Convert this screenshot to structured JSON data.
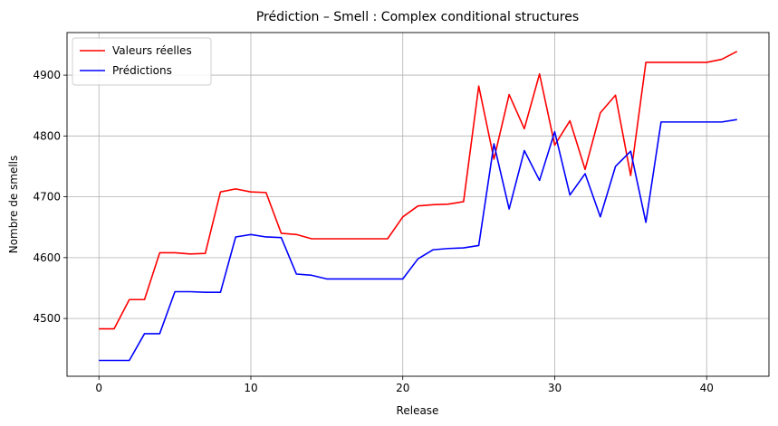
{
  "chart_data": {
    "type": "line",
    "title": "Prédiction – Smell : Complex conditional structures",
    "xlabel": "Release",
    "ylabel": "Nombre de smells",
    "xlim": [
      -2.1,
      44.1
    ],
    "ylim": [
      4405,
      4970
    ],
    "xticks": [
      0,
      10,
      20,
      30,
      40
    ],
    "yticks": [
      4500,
      4600,
      4700,
      4800,
      4900
    ],
    "grid": true,
    "legend_position": "top-left",
    "x": [
      0,
      1,
      2,
      3,
      4,
      5,
      6,
      7,
      8,
      9,
      10,
      11,
      12,
      13,
      14,
      15,
      16,
      17,
      18,
      19,
      20,
      21,
      22,
      23,
      24,
      25,
      26,
      27,
      28,
      29,
      30,
      31,
      32,
      33,
      34,
      35,
      36,
      37,
      38,
      39,
      40,
      41,
      42
    ],
    "series": [
      {
        "name": "Valeurs réelles",
        "color": "#ff0000",
        "values": [
          4483,
          4483,
          4531,
          4531,
          4608,
          4608,
          4606,
          4607,
          4708,
          4713,
          4708,
          4707,
          4640,
          4638,
          4631,
          4631,
          4631,
          4631,
          4631,
          4631,
          4667,
          4685,
          4687,
          4688,
          4692,
          4882,
          4762,
          4868,
          4812,
          4902,
          4785,
          4825,
          4745,
          4838,
          4867,
          4735,
          4921,
          4921,
          4921,
          4921,
          4921,
          4926,
          4939
        ]
      },
      {
        "name": "Prédictions",
        "color": "#0000ff",
        "values": [
          4431,
          4431,
          4431,
          4475,
          4475,
          4544,
          4544,
          4543,
          4543,
          4634,
          4638,
          4634,
          4633,
          4573,
          4571,
          4565,
          4565,
          4565,
          4565,
          4565,
          4565,
          4598,
          4613,
          4615,
          4616,
          4620,
          4787,
          4680,
          4776,
          4727,
          4807,
          4703,
          4738,
          4667,
          4750,
          4775,
          4658,
          4823,
          4823,
          4823,
          4823,
          4823,
          4827
        ]
      }
    ]
  }
}
